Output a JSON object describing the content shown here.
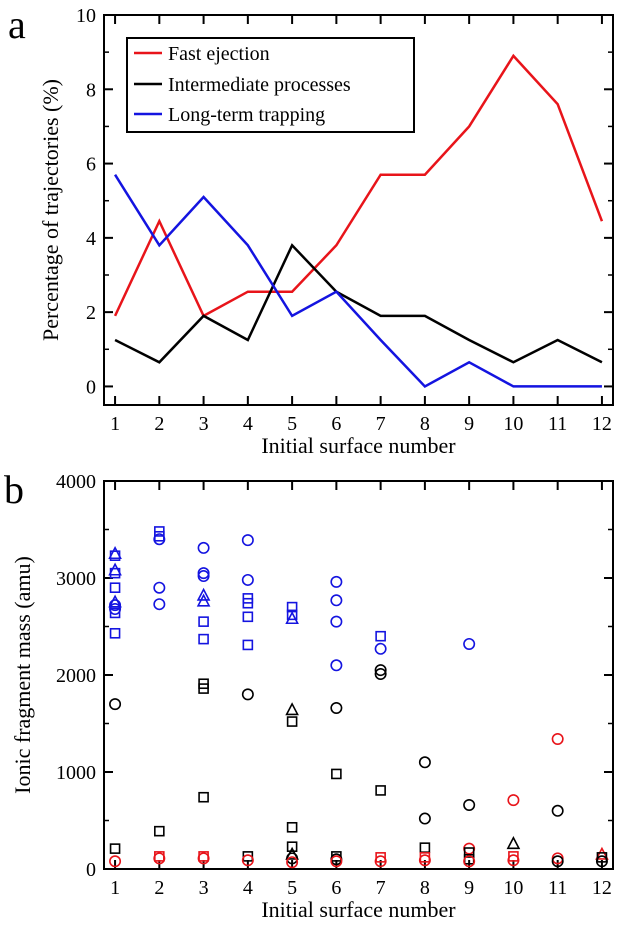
{
  "colors": {
    "red": "#e8141a",
    "black": "#000000",
    "blue": "#1414e0"
  },
  "chart_data": [
    {
      "panel": "a",
      "type": "line",
      "xlabel": "Initial surface number",
      "ylabel": "Percentage of trajectories (%)",
      "xlim": [
        0.75,
        12.25
      ],
      "ylim": [
        -0.5,
        10
      ],
      "xticks": [
        1,
        2,
        3,
        4,
        5,
        6,
        7,
        8,
        9,
        10,
        11,
        12
      ],
      "yticks": [
        0,
        2,
        4,
        6,
        8,
        10
      ],
      "legend_position": "top-left",
      "grid": false,
      "x": [
        1,
        2,
        3,
        4,
        5,
        6,
        7,
        8,
        9,
        10,
        11,
        12
      ],
      "series": [
        {
          "name": "Fast ejection",
          "color": "red",
          "values": [
            1.9,
            4.45,
            1.9,
            2.55,
            2.55,
            3.8,
            5.7,
            5.7,
            7.0,
            8.9,
            7.6,
            4.45
          ]
        },
        {
          "name": "Intermediate processes",
          "color": "black",
          "values": [
            1.25,
            0.65,
            1.9,
            1.25,
            3.8,
            2.55,
            1.9,
            1.9,
            1.25,
            0.65,
            1.25,
            0.65
          ]
        },
        {
          "name": "Long-term trapping",
          "color": "blue",
          "values": [
            5.7,
            3.8,
            5.1,
            3.8,
            1.9,
            2.55,
            1.25,
            0.0,
            0.65,
            0.0,
            0.0,
            0.0
          ]
        }
      ]
    },
    {
      "panel": "b",
      "type": "scatter",
      "xlabel": "Initial surface number",
      "ylabel": "Ionic fragment mass (amu)",
      "xlim": [
        0.75,
        12.25
      ],
      "ylim": [
        0,
        4000
      ],
      "xticks": [
        1,
        2,
        3,
        4,
        5,
        6,
        7,
        8,
        9,
        10,
        11,
        12
      ],
      "yticks": [
        0,
        1000,
        2000,
        3000,
        4000
      ],
      "grid": false,
      "points": [
        {
          "x": 1,
          "y": 3250,
          "marker": "triangle",
          "color": "blue"
        },
        {
          "x": 1,
          "y": 3230,
          "marker": "square",
          "color": "blue"
        },
        {
          "x": 1,
          "y": 3080,
          "marker": "triangle",
          "color": "blue"
        },
        {
          "x": 1,
          "y": 3050,
          "marker": "square",
          "color": "blue"
        },
        {
          "x": 1,
          "y": 2900,
          "marker": "square",
          "color": "blue"
        },
        {
          "x": 1,
          "y": 2750,
          "marker": "triangle",
          "color": "blue"
        },
        {
          "x": 1,
          "y": 2720,
          "marker": "circle",
          "color": "blue"
        },
        {
          "x": 1,
          "y": 2680,
          "marker": "circle",
          "color": "blue"
        },
        {
          "x": 1,
          "y": 2640,
          "marker": "square",
          "color": "blue"
        },
        {
          "x": 1,
          "y": 2430,
          "marker": "square",
          "color": "blue"
        },
        {
          "x": 1,
          "y": 1700,
          "marker": "circle",
          "color": "black"
        },
        {
          "x": 1,
          "y": 210,
          "marker": "square",
          "color": "black"
        },
        {
          "x": 1,
          "y": 80,
          "marker": "circle",
          "color": "red"
        },
        {
          "x": 2,
          "y": 3480,
          "marker": "square",
          "color": "blue"
        },
        {
          "x": 2,
          "y": 3400,
          "marker": "circle",
          "color": "blue"
        },
        {
          "x": 2,
          "y": 3430,
          "marker": "square",
          "color": "blue"
        },
        {
          "x": 2,
          "y": 2900,
          "marker": "circle",
          "color": "blue"
        },
        {
          "x": 2,
          "y": 2730,
          "marker": "circle",
          "color": "blue"
        },
        {
          "x": 2,
          "y": 390,
          "marker": "square",
          "color": "black"
        },
        {
          "x": 2,
          "y": 130,
          "marker": "square",
          "color": "red"
        },
        {
          "x": 2,
          "y": 110,
          "marker": "circle",
          "color": "red"
        },
        {
          "x": 3,
          "y": 3310,
          "marker": "circle",
          "color": "blue"
        },
        {
          "x": 3,
          "y": 3050,
          "marker": "circle",
          "color": "blue"
        },
        {
          "x": 3,
          "y": 3020,
          "marker": "circle",
          "color": "blue"
        },
        {
          "x": 3,
          "y": 2820,
          "marker": "triangle",
          "color": "blue"
        },
        {
          "x": 3,
          "y": 2760,
          "marker": "triangle",
          "color": "blue"
        },
        {
          "x": 3,
          "y": 2550,
          "marker": "square",
          "color": "blue"
        },
        {
          "x": 3,
          "y": 2370,
          "marker": "square",
          "color": "blue"
        },
        {
          "x": 3,
          "y": 1910,
          "marker": "square",
          "color": "black"
        },
        {
          "x": 3,
          "y": 1860,
          "marker": "square",
          "color": "black"
        },
        {
          "x": 3,
          "y": 740,
          "marker": "square",
          "color": "black"
        },
        {
          "x": 3,
          "y": 130,
          "marker": "square",
          "color": "red"
        },
        {
          "x": 3,
          "y": 110,
          "marker": "circle",
          "color": "red"
        },
        {
          "x": 4,
          "y": 3390,
          "marker": "circle",
          "color": "blue"
        },
        {
          "x": 4,
          "y": 2980,
          "marker": "circle",
          "color": "blue"
        },
        {
          "x": 4,
          "y": 2790,
          "marker": "square",
          "color": "blue"
        },
        {
          "x": 4,
          "y": 2740,
          "marker": "square",
          "color": "blue"
        },
        {
          "x": 4,
          "y": 2600,
          "marker": "square",
          "color": "blue"
        },
        {
          "x": 4,
          "y": 2310,
          "marker": "square",
          "color": "blue"
        },
        {
          "x": 4,
          "y": 1800,
          "marker": "circle",
          "color": "black"
        },
        {
          "x": 4,
          "y": 130,
          "marker": "square",
          "color": "black"
        },
        {
          "x": 4,
          "y": 90,
          "marker": "circle",
          "color": "red"
        },
        {
          "x": 5,
          "y": 2700,
          "marker": "square",
          "color": "blue"
        },
        {
          "x": 5,
          "y": 2620,
          "marker": "square",
          "color": "blue"
        },
        {
          "x": 5,
          "y": 2580,
          "marker": "triangle",
          "color": "blue"
        },
        {
          "x": 5,
          "y": 1640,
          "marker": "triangle",
          "color": "black"
        },
        {
          "x": 5,
          "y": 1520,
          "marker": "square",
          "color": "black"
        },
        {
          "x": 5,
          "y": 430,
          "marker": "square",
          "color": "black"
        },
        {
          "x": 5,
          "y": 230,
          "marker": "square",
          "color": "black"
        },
        {
          "x": 5,
          "y": 150,
          "marker": "triangle",
          "color": "black"
        },
        {
          "x": 5,
          "y": 110,
          "marker": "circle",
          "color": "black"
        },
        {
          "x": 5,
          "y": 70,
          "marker": "circle",
          "color": "red"
        },
        {
          "x": 6,
          "y": 2960,
          "marker": "circle",
          "color": "blue"
        },
        {
          "x": 6,
          "y": 2770,
          "marker": "circle",
          "color": "blue"
        },
        {
          "x": 6,
          "y": 2550,
          "marker": "circle",
          "color": "blue"
        },
        {
          "x": 6,
          "y": 2100,
          "marker": "circle",
          "color": "blue"
        },
        {
          "x": 6,
          "y": 1660,
          "marker": "circle",
          "color": "black"
        },
        {
          "x": 6,
          "y": 980,
          "marker": "square",
          "color": "black"
        },
        {
          "x": 6,
          "y": 130,
          "marker": "square",
          "color": "black"
        },
        {
          "x": 6,
          "y": 100,
          "marker": "circle",
          "color": "black"
        },
        {
          "x": 6,
          "y": 80,
          "marker": "circle",
          "color": "red"
        },
        {
          "x": 7,
          "y": 2400,
          "marker": "square",
          "color": "blue"
        },
        {
          "x": 7,
          "y": 2270,
          "marker": "circle",
          "color": "blue"
        },
        {
          "x": 7,
          "y": 2050,
          "marker": "circle",
          "color": "black"
        },
        {
          "x": 7,
          "y": 2010,
          "marker": "circle",
          "color": "black"
        },
        {
          "x": 7,
          "y": 810,
          "marker": "square",
          "color": "black"
        },
        {
          "x": 7,
          "y": 120,
          "marker": "square",
          "color": "red"
        },
        {
          "x": 7,
          "y": 80,
          "marker": "circle",
          "color": "red"
        },
        {
          "x": 8,
          "y": 1100,
          "marker": "circle",
          "color": "black"
        },
        {
          "x": 8,
          "y": 520,
          "marker": "circle",
          "color": "black"
        },
        {
          "x": 8,
          "y": 220,
          "marker": "square",
          "color": "black"
        },
        {
          "x": 8,
          "y": 120,
          "marker": "square",
          "color": "red"
        },
        {
          "x": 8,
          "y": 90,
          "marker": "circle",
          "color": "red"
        },
        {
          "x": 9,
          "y": 2320,
          "marker": "circle",
          "color": "blue"
        },
        {
          "x": 9,
          "y": 660,
          "marker": "circle",
          "color": "black"
        },
        {
          "x": 9,
          "y": 210,
          "marker": "circle",
          "color": "red"
        },
        {
          "x": 9,
          "y": 170,
          "marker": "square",
          "color": "black"
        },
        {
          "x": 9,
          "y": 100,
          "marker": "square",
          "color": "black"
        },
        {
          "x": 9,
          "y": 80,
          "marker": "circle",
          "color": "red"
        },
        {
          "x": 10,
          "y": 710,
          "marker": "circle",
          "color": "red"
        },
        {
          "x": 10,
          "y": 260,
          "marker": "triangle",
          "color": "black"
        },
        {
          "x": 10,
          "y": 130,
          "marker": "square",
          "color": "red"
        },
        {
          "x": 10,
          "y": 90,
          "marker": "circle",
          "color": "red"
        },
        {
          "x": 11,
          "y": 1340,
          "marker": "circle",
          "color": "red"
        },
        {
          "x": 11,
          "y": 600,
          "marker": "circle",
          "color": "black"
        },
        {
          "x": 11,
          "y": 110,
          "marker": "circle",
          "color": "red"
        },
        {
          "x": 11,
          "y": 80,
          "marker": "circle",
          "color": "black"
        },
        {
          "x": 12,
          "y": 150,
          "marker": "triangle",
          "color": "red"
        },
        {
          "x": 12,
          "y": 120,
          "marker": "square",
          "color": "black"
        },
        {
          "x": 12,
          "y": 80,
          "marker": "circle",
          "color": "black"
        }
      ]
    }
  ]
}
